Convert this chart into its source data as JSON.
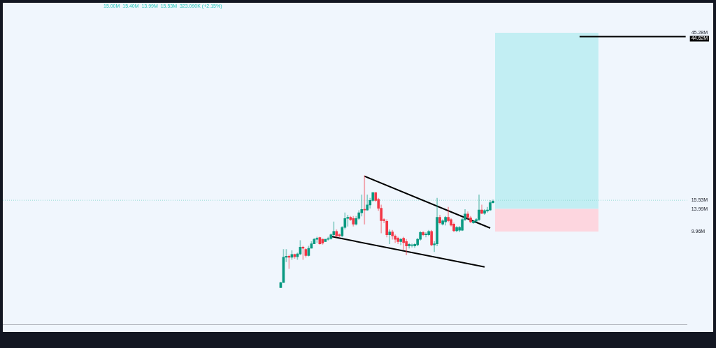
{
  "chart_data": {
    "type": "candlestick",
    "categories": [
      null,
      null,
      null,
      null,
      null,
      null,
      null,
      null,
      null,
      null,
      null,
      null,
      null,
      null,
      null,
      null,
      null,
      null,
      null,
      null,
      null,
      null,
      null,
      null,
      null,
      null,
      null,
      null,
      null,
      null,
      null,
      null,
      null,
      null,
      null,
      null,
      null,
      null,
      null,
      null,
      null,
      null,
      null,
      null,
      null,
      null,
      null,
      null,
      null,
      null,
      null,
      null,
      null,
      null,
      null,
      null,
      null,
      null,
      null,
      null,
      null,
      null,
      null,
      null,
      null,
      null,
      null,
      null,
      null,
      null,
      null,
      null,
      null,
      null,
      null,
      null,
      null,
      null,
      null,
      null,
      null,
      null,
      null,
      null,
      null,
      null,
      null,
      null,
      null,
      null,
      null,
      null,
      null,
      null,
      null,
      null,
      null,
      null,
      null,
      null,
      null,
      null,
      null,
      null,
      null,
      null,
      null,
      null,
      null,
      null,
      null,
      null,
      null,
      null,
      null,
      null,
      null,
      null,
      null,
      null,
      null,
      null,
      null,
      null,
      null,
      null,
      null,
      null,
      null,
      null,
      null,
      null,
      null,
      null,
      null,
      null,
      null,
      null,
      null,
      null,
      null,
      null,
      null,
      null,
      null,
      null,
      null,
      null,
      null,
      null,
      null,
      null,
      null,
      null,
      null,
      null,
      null,
      null,
      null,
      null,
      null,
      null,
      null,
      null,
      null,
      null,
      null,
      null,
      null,
      null,
      null,
      null,
      null,
      null,
      null,
      null,
      null,
      null,
      null,
      null,
      null,
      null,
      null,
      null,
      null,
      null,
      null,
      null,
      null,
      null,
      null,
      null,
      null,
      null,
      null,
      null,
      null,
      null,
      null,
      null,
      null,
      null,
      null,
      null,
      null,
      null,
      null,
      null,
      null,
      null,
      null,
      null,
      null,
      null,
      null,
      null,
      null,
      null,
      null,
      null,
      null,
      null,
      null,
      null,
      null,
      null,
      null,
      null,
      null,
      null,
      null,
      null,
      null,
      null,
      null,
      null,
      null,
      null,
      null,
      null,
      null,
      null,
      null,
      null,
      null
    ],
    "ohlc": [
      null,
      null,
      null,
      null,
      null,
      null,
      null,
      null,
      null,
      null,
      null,
      null,
      null,
      null,
      null,
      null,
      null,
      null,
      null,
      null,
      null,
      null,
      null,
      null,
      null,
      null,
      null,
      null,
      null,
      null,
      null,
      null,
      null,
      null,
      null,
      null,
      null,
      null,
      null,
      null,
      null,
      null,
      null,
      null,
      null,
      null,
      null,
      null,
      null,
      null,
      null,
      null,
      null,
      null,
      null,
      null,
      null,
      null,
      null,
      null,
      null,
      null,
      null,
      null,
      null,
      null,
      null,
      null,
      null,
      null,
      null,
      null,
      null,
      null,
      null,
      null,
      null,
      null,
      null,
      null,
      null,
      null,
      null,
      null,
      null,
      null,
      null,
      null,
      null,
      null,
      null,
      null,
      null,
      null,
      null,
      null,
      null,
      null,
      null,
      [
        0.0,
        1.0,
        0.0,
        0.9
      ],
      [
        0.9,
        6.8,
        0.9,
        5.4
      ],
      [
        5.4,
        6.8,
        4.6,
        5.6
      ],
      [
        5.6,
        5.8,
        3.4,
        5.4
      ],
      [
        5.4,
        6.6,
        5.0,
        5.9
      ],
      [
        5.9,
        6.0,
        5.2,
        5.5
      ],
      [
        5.5,
        6.2,
        5.0,
        6.0
      ],
      [
        6.0,
        8.4,
        5.8,
        7.2
      ],
      [
        7.2,
        7.4,
        5.0,
        7.0
      ],
      [
        6.8,
        7.0,
        5.4,
        5.7
      ],
      [
        5.7,
        7.4,
        5.6,
        7.0
      ],
      [
        7.0,
        8.2,
        7.0,
        7.8
      ],
      [
        7.8,
        8.8,
        7.8,
        8.6
      ],
      [
        8.6,
        9.0,
        8.0,
        8.8
      ],
      [
        8.9,
        9.0,
        7.7,
        7.8
      ],
      [
        8.6,
        8.7,
        7.7,
        7.9
      ],
      [
        8.2,
        8.6,
        8.2,
        8.6
      ],
      [
        8.6,
        9.0,
        8.4,
        8.7
      ],
      [
        8.7,
        9.6,
        8.6,
        9.4
      ],
      [
        9.4,
        11.7,
        9.2,
        10.0
      ],
      [
        10.0,
        10.3,
        9.0,
        9.2
      ],
      [
        9.4,
        9.6,
        9.0,
        9.2
      ],
      [
        9.2,
        10.9,
        9.0,
        10.7
      ],
      [
        10.7,
        13.3,
        10.4,
        12.3
      ],
      [
        12.3,
        12.9,
        10.9,
        12.5
      ],
      [
        12.5,
        12.7,
        11.9,
        12.1
      ],
      [
        12.3,
        12.7,
        10.9,
        11.3
      ],
      [
        11.3,
        12.7,
        11.1,
        12.3
      ],
      [
        12.3,
        13.7,
        12.1,
        13.3
      ],
      [
        13.3,
        16.5,
        12.7,
        13.9
      ],
      [
        13.9,
        19.9,
        11.3,
        13.8
      ],
      [
        13.8,
        16.5,
        13.7,
        14.7
      ],
      [
        14.7,
        15.9,
        14.1,
        15.5
      ],
      [
        15.5,
        16.9,
        15.3,
        16.9
      ],
      [
        16.9,
        16.9,
        15.3,
        15.5
      ],
      [
        15.7,
        15.9,
        13.7,
        14.1
      ],
      [
        14.1,
        14.7,
        9.7,
        11.9
      ],
      [
        12.1,
        12.3,
        11.5,
        11.9
      ],
      [
        11.8,
        12.1,
        9.0,
        9.4
      ],
      [
        9.4,
        10.3,
        7.8,
        9.9
      ],
      [
        9.9,
        10.2,
        8.6,
        9.2
      ],
      [
        9.2,
        9.4,
        8.0,
        8.6
      ],
      [
        8.8,
        9.0,
        7.8,
        8.2
      ],
      [
        8.2,
        8.8,
        7.6,
        8.6
      ],
      [
        8.8,
        9.0,
        6.8,
        8.0
      ],
      [
        8.2,
        8.6,
        5.8,
        7.4
      ],
      [
        7.4,
        7.9,
        7.0,
        7.7
      ],
      [
        7.5,
        7.8,
        7.2,
        7.6
      ],
      [
        7.4,
        7.9,
        7.1,
        7.7
      ],
      [
        7.6,
        8.8,
        7.4,
        8.6
      ],
      [
        8.6,
        10.0,
        8.4,
        9.8
      ],
      [
        9.8,
        10.0,
        9.2,
        9.4
      ],
      [
        9.4,
        9.8,
        9.0,
        9.5
      ],
      [
        9.4,
        10.2,
        9.2,
        10.0
      ],
      [
        10.0,
        10.2,
        7.4,
        7.6
      ],
      [
        7.6,
        8.2,
        6.4,
        7.8
      ],
      [
        7.8,
        15.9,
        7.4,
        12.5
      ],
      [
        12.5,
        12.9,
        11.3,
        11.5
      ],
      [
        11.3,
        12.1,
        11.1,
        11.9
      ],
      [
        11.7,
        12.7,
        11.1,
        12.5
      ],
      [
        12.5,
        14.3,
        11.7,
        11.9
      ],
      [
        12.1,
        12.3,
        10.9,
        11.1
      ],
      [
        11.3,
        11.5,
        9.9,
        10.1
      ],
      [
        10.1,
        10.9,
        9.9,
        10.7
      ],
      [
        10.2,
        10.9,
        9.9,
        10.7
      ],
      [
        10.2,
        12.3,
        10.1,
        12.1
      ],
      [
        12.1,
        13.9,
        11.9,
        13.1
      ],
      [
        13.1,
        13.5,
        12.1,
        12.5
      ],
      [
        12.4,
        12.7,
        11.5,
        11.7
      ],
      [
        11.5,
        11.9,
        11.4,
        11.8
      ],
      [
        11.8,
        12.3,
        11.6,
        12.1
      ],
      [
        12.1,
        16.5,
        11.9,
        13.8
      ],
      [
        13.8,
        14.7,
        13.1,
        13.2
      ],
      [
        13.2,
        13.9,
        13.0,
        13.7
      ],
      [
        13.6,
        14.3,
        13.4,
        13.8
      ],
      [
        13.8,
        15.5,
        13.7,
        15.1
      ],
      [
        15.1,
        15.6,
        15.0,
        15.4
      ],
      null,
      null,
      null,
      null,
      null,
      null,
      null,
      null,
      null,
      null,
      null,
      null,
      null,
      null,
      null,
      null,
      null,
      null,
      null,
      null,
      null,
      null,
      null,
      null,
      null,
      null,
      null,
      null,
      null,
      null,
      null,
      null,
      null,
      null,
      null,
      null,
      null,
      null,
      null,
      null,
      null,
      null,
      null,
      null,
      null,
      null,
      null,
      null,
      null,
      null,
      null,
      null,
      null,
      null,
      null,
      null,
      null,
      null,
      null,
      null,
      null,
      null,
      null,
      null,
      null,
      null,
      null,
      null,
      null
    ],
    "series": [
      {
        "type": "line",
        "color": "#000000",
        "values": [
          null,
          null,
          null,
          null,
          null,
          null,
          null,
          null,
          null,
          null,
          null,
          null,
          null,
          null,
          null,
          null,
          null,
          null,
          null,
          null,
          null,
          null,
          null,
          null,
          null,
          null,
          null,
          null,
          null,
          null,
          null,
          null,
          null,
          null,
          null,
          null,
          null,
          null,
          null,
          null,
          null,
          null,
          null,
          null,
          null,
          null,
          null,
          null,
          null,
          null,
          null,
          null,
          null,
          null,
          null,
          null,
          null,
          null,
          null,
          null,
          null,
          null,
          null,
          null,
          null,
          null,
          null,
          null,
          null,
          null,
          null,
          null,
          null,
          null,
          null,
          null,
          null,
          null,
          null,
          null,
          null,
          null,
          null,
          null,
          null,
          null,
          null,
          null,
          null,
          null,
          null,
          null,
          null,
          null,
          null,
          null,
          null,
          null,
          null,
          null,
          null,
          null,
          null,
          null,
          null,
          null,
          null,
          null,
          null,
          null,
          null,
          null,
          null,
          null,
          null,
          null,
          null,
          null,
          null,
          null,
          null,
          null,
          null,
          null,
          null,
          null,
          null,
          null,
          null,
          19.8,
          null,
          null,
          null,
          null,
          null,
          null,
          null,
          null,
          null,
          null,
          null,
          null,
          null,
          null,
          null,
          null,
          null,
          null,
          null,
          null,
          null,
          null,
          null,
          null,
          null,
          null,
          null,
          null,
          null,
          null,
          null,
          null,
          null,
          null,
          null,
          null,
          null,
          null,
          null,
          null,
          null,
          null,
          null,
          null,
          10.6,
          null,
          null,
          null,
          null,
          null,
          null,
          null,
          null,
          null,
          null,
          null,
          null,
          null,
          null,
          null,
          null,
          null,
          null,
          null,
          null,
          null,
          null,
          null,
          null,
          null,
          null,
          null,
          null,
          null,
          null,
          null,
          null,
          null,
          null,
          null,
          null,
          null,
          null,
          null,
          null,
          null,
          null,
          null,
          null,
          null,
          null,
          null,
          null,
          null,
          null,
          null,
          null,
          null,
          null,
          null,
          null,
          null,
          null,
          null,
          null,
          null,
          null,
          null,
          null,
          null,
          null,
          null,
          null,
          null,
          null
        ]
      },
      {
        "type": "line",
        "color": "#000000",
        "values": [
          null,
          null,
          null,
          null,
          null,
          null,
          null,
          null,
          null,
          null,
          null,
          null,
          null,
          null,
          null,
          null,
          null,
          null,
          null,
          null,
          null,
          null,
          null,
          null,
          null,
          null,
          null,
          null,
          null,
          null,
          null,
          null,
          null,
          null,
          null,
          null,
          null,
          null,
          null,
          null,
          null,
          null,
          null,
          null,
          null,
          null,
          null,
          null,
          null,
          null,
          null,
          null,
          null,
          null,
          null,
          null,
          null,
          null,
          null,
          null,
          null,
          null,
          null,
          null,
          null,
          null,
          null,
          null,
          null,
          null,
          null,
          null,
          null,
          null,
          null,
          null,
          null,
          null,
          null,
          null,
          null,
          null,
          null,
          null,
          null,
          null,
          null,
          null,
          null,
          null,
          null,
          null,
          null,
          null,
          null,
          null,
          null,
          null,
          null,
          null,
          null,
          null,
          null,
          null,
          null,
          null,
          null,
          null,
          null,
          null,
          null,
          null,
          null,
          null,
          null,
          null,
          null,
          9.1,
          null,
          null,
          null,
          null,
          null,
          null,
          null,
          null,
          null,
          null,
          null,
          null,
          null,
          null,
          null,
          null,
          null,
          null,
          null,
          null,
          null,
          null,
          null,
          null,
          null,
          null,
          null,
          null,
          null,
          null,
          null,
          null,
          null,
          null,
          null,
          null,
          null,
          null,
          null,
          null,
          null,
          null,
          null,
          null,
          null,
          null,
          null,
          null,
          null,
          null,
          null,
          null,
          null,
          null,
          3.7,
          null,
          null,
          null,
          null,
          null,
          null,
          null,
          null,
          null,
          null,
          null,
          null,
          null,
          null,
          null,
          null,
          null,
          null,
          null,
          null,
          null,
          null,
          null,
          null,
          null,
          null,
          null,
          null,
          null,
          null,
          null,
          null,
          null,
          null,
          null,
          null,
          null,
          null,
          null,
          null,
          null,
          null,
          null,
          null,
          null,
          null,
          null,
          null,
          null,
          null,
          null,
          null,
          null,
          null,
          null,
          null,
          null,
          null,
          null,
          null,
          null,
          null,
          null,
          null,
          null,
          null,
          null,
          null,
          null,
          null,
          null,
          null
        ]
      },
      {
        "type": "line",
        "color": "#000000",
        "name": "44.62M",
        "values": [
          null,
          null,
          null,
          null,
          null,
          null,
          null,
          null,
          null,
          null,
          null,
          null,
          null,
          null,
          null,
          null,
          null,
          null,
          null,
          null,
          null,
          null,
          null,
          null,
          null,
          null,
          null,
          null,
          null,
          null,
          null,
          null,
          null,
          null,
          null,
          null,
          null,
          null,
          null,
          null,
          null,
          null,
          null,
          null,
          null,
          null,
          null,
          null,
          null,
          null,
          null,
          null,
          null,
          null,
          null,
          null,
          null,
          null,
          null,
          null,
          null,
          null,
          null,
          null,
          null,
          null,
          null,
          null,
          null,
          null,
          null,
          null,
          null,
          null,
          null,
          null,
          null,
          null,
          null,
          null,
          null,
          null,
          null,
          null,
          null,
          null,
          null,
          null,
          null,
          null,
          null,
          null,
          null,
          null,
          null,
          null,
          null,
          null,
          null,
          null,
          null,
          null,
          null,
          null,
          null,
          null,
          null,
          null,
          null,
          null,
          null,
          null,
          null,
          null,
          null,
          null,
          null,
          null,
          null,
          null,
          null,
          null,
          null,
          null,
          null,
          null,
          null,
          null,
          null,
          null,
          null,
          null,
          null,
          null,
          null,
          null,
          null,
          null,
          null,
          null,
          null,
          null,
          null,
          null,
          null,
          null,
          null,
          null,
          null,
          null,
          null,
          null,
          null,
          null,
          null,
          null,
          null,
          null,
          null,
          null,
          null,
          null,
          null,
          null,
          null,
          null,
          null,
          null,
          null,
          null,
          null,
          null,
          null,
          null,
          null,
          null,
          null,
          null,
          null,
          null,
          null,
          null,
          null,
          null,
          null,
          null,
          null,
          null,
          null,
          null,
          null,
          null,
          null,
          null,
          null,
          null,
          null,
          null,
          null,
          null,
          null,
          null,
          null,
          null,
          null,
          null,
          44.6,
          null,
          null,
          null,
          null,
          null,
          null,
          null,
          null,
          null,
          null,
          null,
          null,
          null,
          null,
          null,
          null,
          null,
          null,
          null,
          null,
          null,
          null,
          null,
          null,
          null,
          null,
          null,
          null,
          null,
          null,
          null,
          null,
          null,
          null,
          null,
          null,
          null,
          44.6
        ]
      }
    ],
    "ylim": [
      -6.6,
      45.28
    ],
    "yticks": [
      {
        "value": 45.28,
        "label": "45.28M"
      },
      {
        "value": 15.53,
        "label": "15.53M"
      },
      {
        "value": 13.99,
        "label": "13.99M"
      },
      {
        "value": 9.96,
        "label": "9.96M"
      }
    ],
    "tick_labels": "y",
    "bands": [
      {
        "axis": "y",
        "from": 13.99,
        "to": 45.28,
        "color": "#c2eef3"
      },
      {
        "axis": "y",
        "from": 9.96,
        "to": 13.99,
        "color": "#fdd6df"
      }
    ],
    "ref_lines": [
      {
        "axis": "y",
        "value": 15.53,
        "color": "#8fdcd4",
        "line_style": "dotted"
      }
    ],
    "annotations": [
      "15.00M  15.40M  13.99M  15.53M  323.090K (+2.15%)"
    ]
  }
}
